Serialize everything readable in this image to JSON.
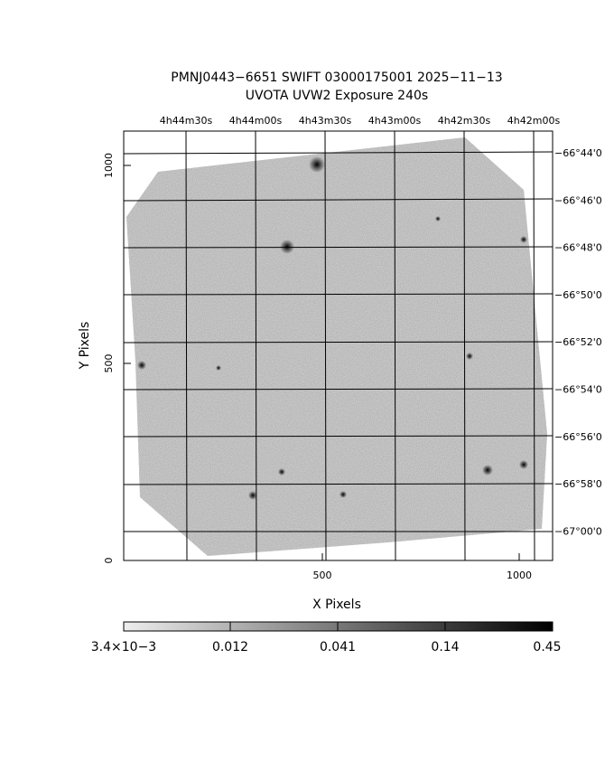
{
  "header": {
    "title": "PMNJ0443−6651 SWIFT 03000175001 2025−11−13",
    "subtitle": "UVOTA UVW2 Exposure        240s"
  },
  "axes": {
    "x_label": "X Pixels",
    "y_label": "Y Pixels",
    "x_ticks": [
      "500",
      "1000"
    ],
    "y_ticks": [
      "0",
      "500",
      "1000"
    ],
    "top_ticks": [
      "4h44m30s",
      "4h44m00s",
      "4h43m30s",
      "4h43m00s",
      "4h42m30s",
      "4h42m00s"
    ],
    "right_ticks": [
      "−66°44'0",
      "−66°46'0",
      "−66°48'0",
      "−66°50'0",
      "−66°52'0",
      "−66°54'0",
      "−66°56'0",
      "−66°58'0",
      "−67°00'0"
    ]
  },
  "colorbar": {
    "labels": [
      "3.4×10−3",
      "0.012",
      "0.041",
      "0.14",
      "0.45"
    ]
  }
}
